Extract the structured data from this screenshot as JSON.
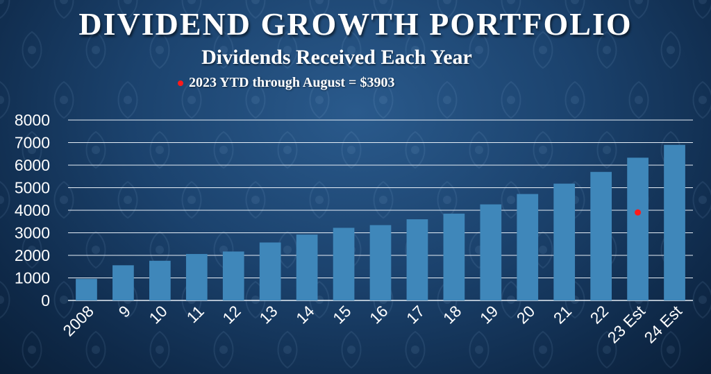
{
  "slide": {
    "title": "DIVIDEND GROWTH PORTFOLIO",
    "subtitle": "Dividends Received Each Year",
    "note": "2023 YTD through  August = $3903"
  },
  "colors": {
    "bar": "#3f87ba",
    "marker": "#ff1a1a",
    "grid": "#e6eef6",
    "text": "#ffffff"
  },
  "chart_data": {
    "type": "bar",
    "title": "Dividends Received Each Year",
    "xlabel": "",
    "ylabel": "",
    "ylim": [
      0,
      8000
    ],
    "yticks": [
      0,
      1000,
      2000,
      3000,
      4000,
      5000,
      6000,
      7000,
      8000
    ],
    "grid": true,
    "categories": [
      "2008",
      "9",
      "10",
      "11",
      "12",
      "13",
      "14",
      "15",
      "16",
      "17",
      "18",
      "19",
      "20",
      "21",
      "22",
      "23 Est",
      "24 Est"
    ],
    "values": [
      960,
      1560,
      1760,
      2060,
      2170,
      2570,
      2920,
      3220,
      3340,
      3600,
      3850,
      4260,
      4720,
      5180,
      5700,
      6330,
      6900
    ],
    "annotations": [
      {
        "category": "23 Est",
        "value": 3903,
        "label": "2023 YTD through  August = $3903"
      }
    ]
  }
}
